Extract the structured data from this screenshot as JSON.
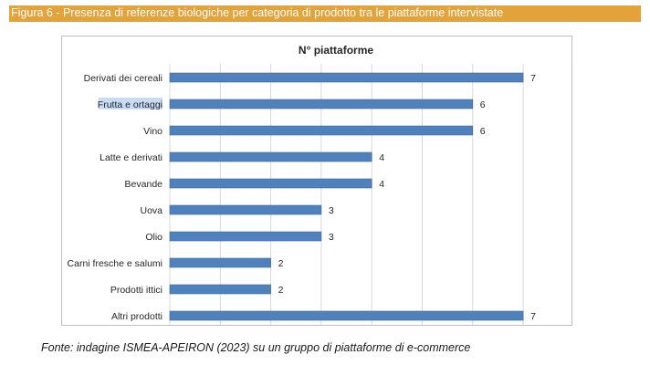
{
  "figure": {
    "caption": "Figura 6 - Presenza di referenze biologiche per categoria di prodotto tra le piattaforme intervistate",
    "source": "Fonte: indagine ISMEA-APEIRON (2023) su un gruppo di piattaforme di e-commerce"
  },
  "chart_data": {
    "type": "bar",
    "orientation": "horizontal",
    "title": "N° piattaforme",
    "categories": [
      "Derivati dei cereali",
      "Frutta e ortaggi",
      "Vino",
      "Latte e derivati",
      "Bevande",
      "Uova",
      "Olio",
      "Carni fresche e salumi",
      "Prodotti ittici",
      "Altri prodotti"
    ],
    "values": [
      7,
      6,
      6,
      4,
      4,
      3,
      3,
      2,
      2,
      7
    ],
    "xlim": [
      0,
      8
    ],
    "grid": true,
    "legend": false,
    "bar_color": "#4f81bd",
    "grid_color": "#d9d9d9",
    "highlight_color": "#c6dcf5"
  }
}
